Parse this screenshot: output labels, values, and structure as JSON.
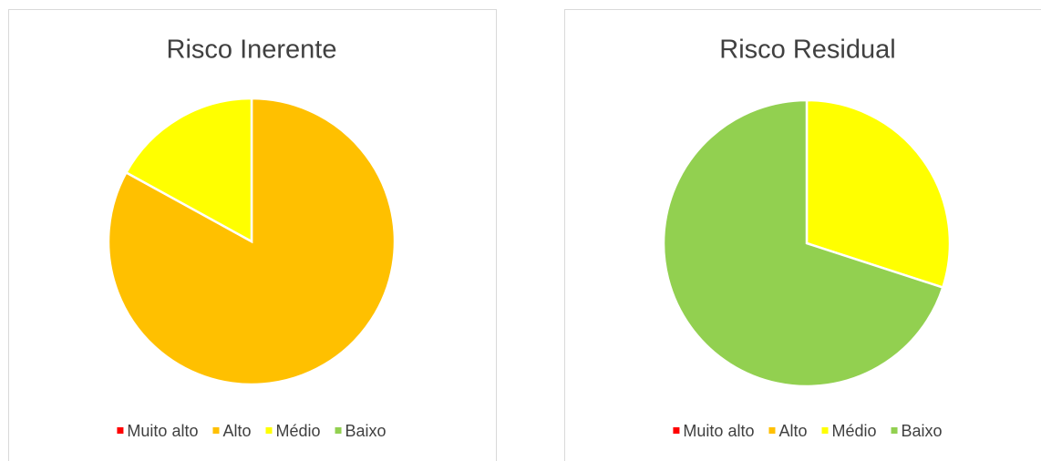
{
  "chart_data": [
    {
      "type": "pie",
      "title": "Risco Inerente",
      "categories": [
        "Muito alto",
        "Alto",
        "Médio",
        "Baixo"
      ],
      "values": [
        0,
        83,
        17,
        0
      ],
      "colors": [
        "#ff0000",
        "#ffc000",
        "#ffff00",
        "#92d050"
      ],
      "legend": "bottom"
    },
    {
      "type": "pie",
      "title": "Risco Residual",
      "categories": [
        "Muito alto",
        "Alto",
        "Médio",
        "Baixo"
      ],
      "values": [
        0,
        0,
        30,
        70
      ],
      "colors": [
        "#ff0000",
        "#ffc000",
        "#ffff00",
        "#92d050"
      ],
      "legend": "bottom"
    }
  ]
}
